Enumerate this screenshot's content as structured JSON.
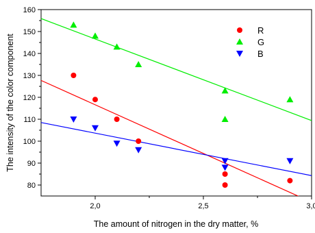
{
  "chart_data": {
    "type": "scatter",
    "title": "",
    "xlabel": "The amount of nitrogen in the dry matter, %",
    "ylabel": "The intensity of the color component",
    "xlim": [
      1.75,
      3.0
    ],
    "ylim": [
      75,
      160
    ],
    "x_ticks": [
      {
        "value": 2.0,
        "label": "2,0"
      },
      {
        "value": 2.5,
        "label": "2,5"
      },
      {
        "value": 3.0,
        "label": "3,0"
      }
    ],
    "y_ticks": [
      {
        "value": 80,
        "label": "80"
      },
      {
        "value": 90,
        "label": "90"
      },
      {
        "value": 100,
        "label": "100"
      },
      {
        "value": 110,
        "label": "110"
      },
      {
        "value": 120,
        "label": "120"
      },
      {
        "value": 130,
        "label": "130"
      },
      {
        "value": 140,
        "label": "140"
      },
      {
        "value": 150,
        "label": "150"
      },
      {
        "value": 160,
        "label": "160"
      }
    ],
    "grid": false,
    "legend_position": "top-right",
    "series": [
      {
        "name": "R",
        "color": "#ff0000",
        "marker": "circle",
        "points": [
          [
            1.9,
            130
          ],
          [
            2.0,
            119
          ],
          [
            2.1,
            110
          ],
          [
            2.2,
            100
          ],
          [
            2.6,
            85
          ],
          [
            2.6,
            80
          ],
          [
            2.9,
            82
          ]
        ],
        "trend": [
          [
            1.75,
            127.7
          ],
          [
            3.0,
            72.2
          ]
        ]
      },
      {
        "name": "G",
        "color": "#00ee00",
        "marker": "triangle-up",
        "points": [
          [
            1.9,
            153
          ],
          [
            2.0,
            148
          ],
          [
            2.1,
            143
          ],
          [
            2.2,
            135
          ],
          [
            2.6,
            123
          ],
          [
            2.6,
            110
          ],
          [
            2.9,
            119
          ]
        ],
        "trend": [
          [
            1.75,
            155.9
          ],
          [
            3.0,
            109.4
          ]
        ]
      },
      {
        "name": "B",
        "color": "#0000ff",
        "marker": "triangle-down",
        "points": [
          [
            1.9,
            110
          ],
          [
            2.0,
            106
          ],
          [
            2.1,
            99
          ],
          [
            2.2,
            96
          ],
          [
            2.6,
            91
          ],
          [
            2.6,
            88
          ],
          [
            2.9,
            91
          ]
        ],
        "trend": [
          [
            1.75,
            108.5
          ],
          [
            3.0,
            84.3
          ]
        ]
      }
    ]
  }
}
